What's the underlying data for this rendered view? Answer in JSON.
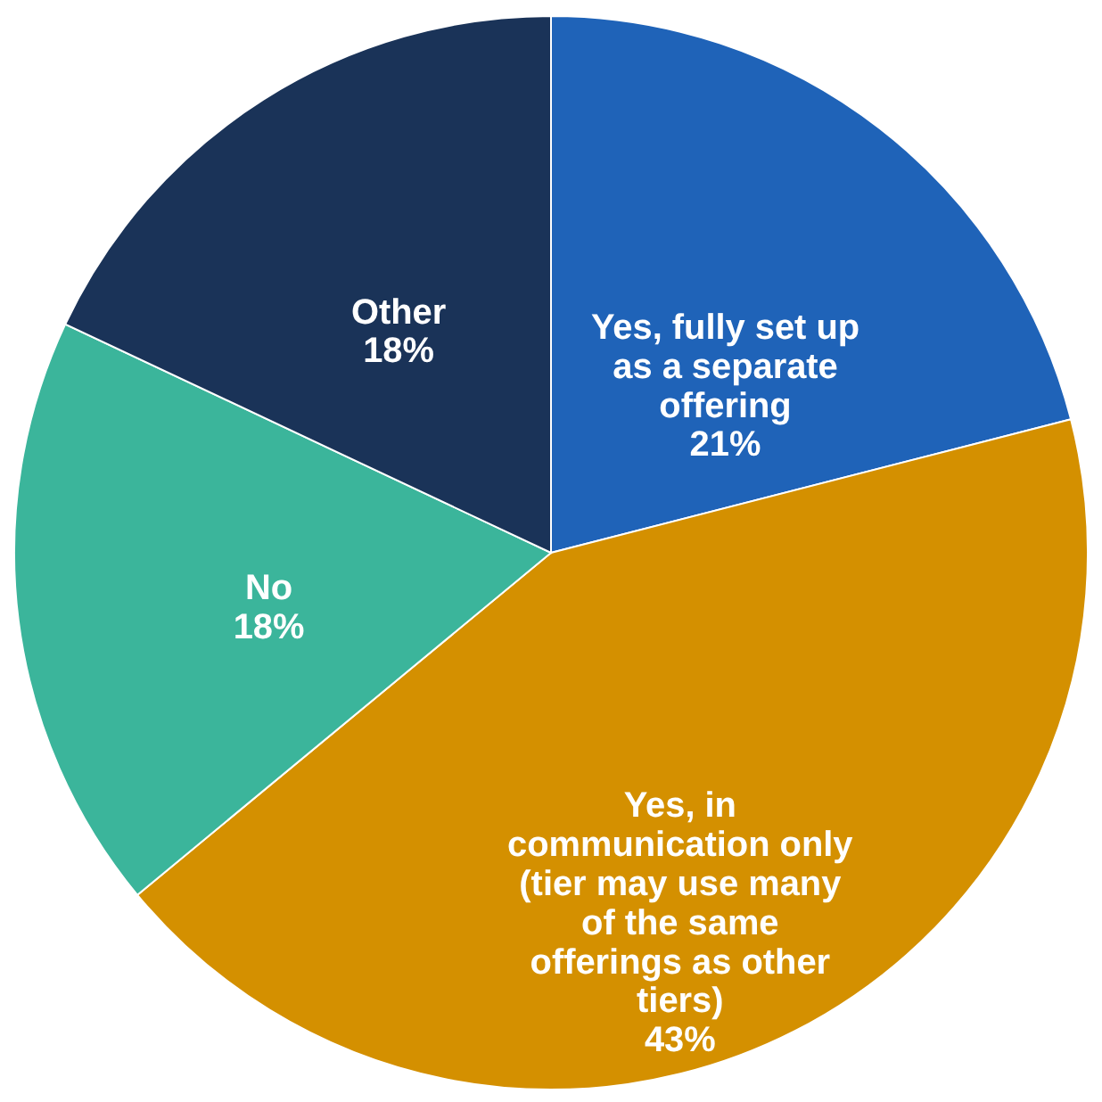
{
  "chart_data": {
    "type": "pie",
    "categories": [
      "Yes, fully set up as a separate offering",
      "Yes, in communication only (tier may use many of the same offerings as other tiers)",
      "No",
      "Other"
    ],
    "values": [
      21,
      43,
      18,
      18
    ],
    "value_labels": [
      "21%",
      "43%",
      "18%",
      "18%"
    ],
    "colors": [
      "#1f63b8",
      "#d49000",
      "#3bb59b",
      "#1a3358"
    ],
    "legend": false
  }
}
